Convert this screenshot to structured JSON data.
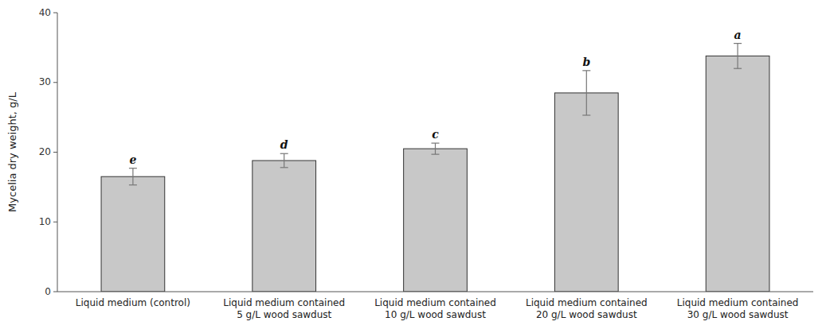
{
  "chart_data": {
    "type": "bar",
    "categories": [
      "Liquid medium (control)",
      "Liquid medium contained\n5 g/L wood sawdust",
      "Liquid medium contained\n10 g/L wood sawdust",
      "Liquid medium contained\n20 g/L wood sawdust",
      "Liquid medium contained\n30 g/L wood sawdust"
    ],
    "values": [
      16.5,
      18.8,
      20.5,
      28.5,
      33.8
    ],
    "errors": [
      1.2,
      1.0,
      0.8,
      3.2,
      1.8
    ],
    "annotations": [
      "e",
      "d",
      "c",
      "b",
      "a"
    ],
    "color": "#c8c8c8",
    "ylabel": "Mycelia dry weight, g/L",
    "ylim": [
      0,
      40
    ],
    "yticks": [
      0,
      10,
      20,
      30,
      40
    ],
    "grid": false
  }
}
